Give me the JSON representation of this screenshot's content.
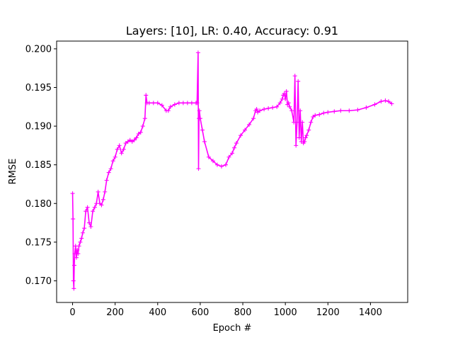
{
  "chart_data": {
    "type": "line",
    "title": "Layers: [10], LR: 0.40, Accuracy: 0.91",
    "xlabel": "Epoch #",
    "ylabel": "RMSE",
    "xlim": [
      -75,
      1575
    ],
    "ylim": [
      0.1672,
      0.201
    ],
    "xticks": [
      0,
      200,
      400,
      600,
      800,
      1000,
      1200,
      1400
    ],
    "yticks": [
      0.17,
      0.175,
      0.18,
      0.185,
      0.19,
      0.195,
      0.2
    ],
    "ytick_labels": [
      "0.170",
      "0.175",
      "0.180",
      "0.185",
      "0.190",
      "0.195",
      "0.200"
    ],
    "grid": false,
    "legend": "none",
    "series": [
      {
        "color": "#ff00ff",
        "marker": "+",
        "x": [
          0,
          2,
          4,
          6,
          8,
          10,
          14,
          18,
          22,
          26,
          30,
          36,
          42,
          48,
          55,
          62,
          70,
          78,
          86,
          95,
          104,
          112,
          120,
          128,
          136,
          144,
          152,
          160,
          170,
          180,
          190,
          200,
          210,
          220,
          230,
          240,
          250,
          260,
          270,
          280,
          290,
          300,
          310,
          320,
          330,
          340,
          345,
          350,
          360,
          380,
          400,
          420,
          440,
          450,
          460,
          480,
          500,
          520,
          540,
          560,
          580,
          585,
          590,
          592,
          594,
          596,
          600,
          610,
          620,
          640,
          660,
          680,
          700,
          720,
          735,
          750,
          760,
          770,
          790,
          810,
          830,
          850,
          860,
          865,
          870,
          880,
          900,
          920,
          940,
          960,
          975,
          985,
          990,
          995,
          1000,
          1005,
          1010,
          1015,
          1020,
          1030,
          1040,
          1045,
          1050,
          1055,
          1060,
          1065,
          1070,
          1075,
          1080,
          1085,
          1090,
          1095,
          1100,
          1110,
          1120,
          1130,
          1140,
          1160,
          1180,
          1200,
          1230,
          1260,
          1300,
          1340,
          1380,
          1420,
          1450,
          1470,
          1485,
          1500
        ],
        "y": [
          0.1813,
          0.178,
          0.17,
          0.169,
          0.172,
          0.1735,
          0.1745,
          0.173,
          0.174,
          0.1735,
          0.1745,
          0.175,
          0.1755,
          0.1762,
          0.1768,
          0.179,
          0.1795,
          0.1775,
          0.177,
          0.179,
          0.1795,
          0.18,
          0.1815,
          0.18,
          0.1798,
          0.1805,
          0.1815,
          0.183,
          0.184,
          0.1845,
          0.1855,
          0.186,
          0.187,
          0.1875,
          0.1865,
          0.187,
          0.1878,
          0.188,
          0.1882,
          0.188,
          0.1882,
          0.1885,
          0.189,
          0.1892,
          0.19,
          0.191,
          0.194,
          0.193,
          0.193,
          0.193,
          0.193,
          0.1927,
          0.192,
          0.192,
          0.1925,
          0.1928,
          0.193,
          0.193,
          0.193,
          0.193,
          0.193,
          0.193,
          0.1995,
          0.1845,
          0.191,
          0.192,
          0.191,
          0.1895,
          0.188,
          0.186,
          0.1855,
          0.185,
          0.1848,
          0.185,
          0.186,
          0.1865,
          0.1872,
          0.1878,
          0.1888,
          0.1895,
          0.1902,
          0.191,
          0.192,
          0.1922,
          0.1918,
          0.192,
          0.1922,
          0.1923,
          0.1924,
          0.1925,
          0.193,
          0.1935,
          0.194,
          0.1942,
          0.1935,
          0.1945,
          0.1928,
          0.193,
          0.1925,
          0.192,
          0.1905,
          0.1965,
          0.1875,
          0.1905,
          0.1958,
          0.1885,
          0.192,
          0.188,
          0.1905,
          0.1878,
          0.188,
          0.1885,
          0.1888,
          0.1895,
          0.1905,
          0.1912,
          0.1914,
          0.1915,
          0.1917,
          0.1918,
          0.1919,
          0.192,
          0.192,
          0.1921,
          0.1924,
          0.1928,
          0.1932,
          0.1933,
          0.1932,
          0.1929
        ]
      }
    ]
  }
}
